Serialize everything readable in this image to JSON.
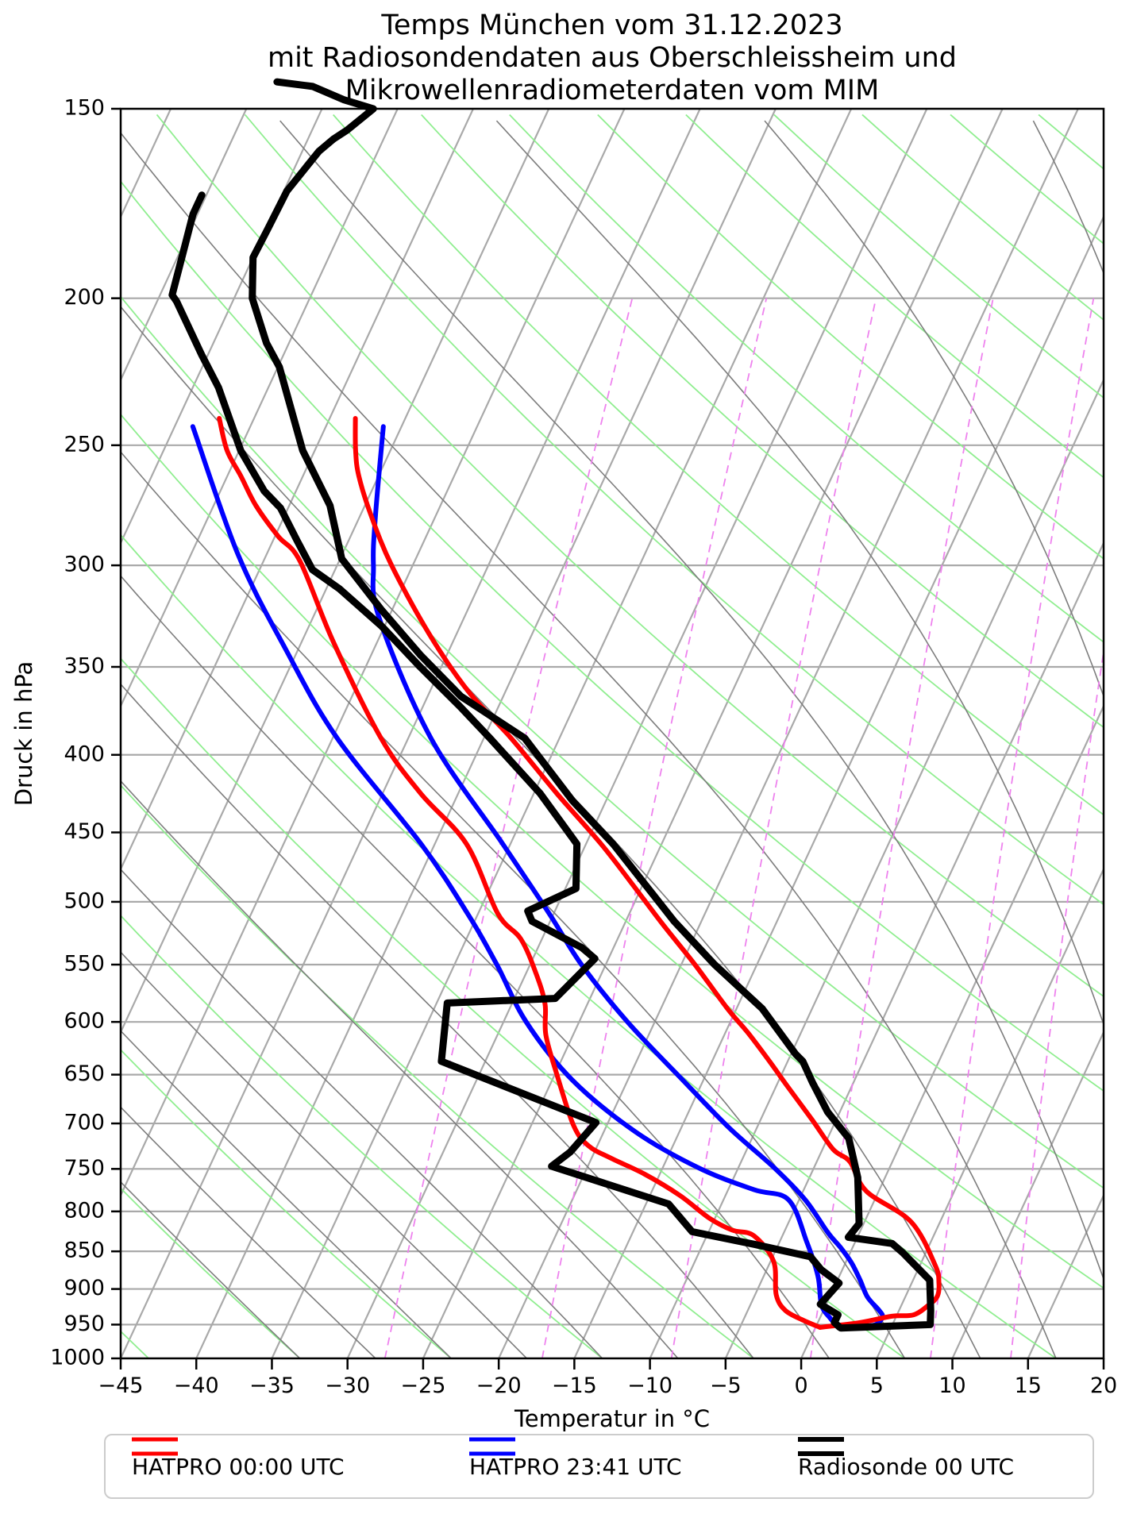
{
  "title": {
    "line1": "Temps München vom 31.12.2023",
    "line2": "mit Radiosondendaten aus Oberschleissheim und",
    "line3": "Mikrowellenradiometerdaten vom MIM"
  },
  "x_axis": {
    "label": "Temperatur in °C",
    "ticks": [
      -45,
      -40,
      -35,
      -30,
      -25,
      -20,
      -15,
      -10,
      -5,
      0,
      5,
      10,
      15,
      20
    ]
  },
  "y_axis": {
    "label": "Druck in hPa",
    "ticks": [
      150,
      200,
      250,
      300,
      350,
      400,
      450,
      500,
      550,
      600,
      650,
      700,
      750,
      800,
      850,
      900,
      950,
      1000
    ],
    "scale": "log"
  },
  "legend": {
    "items": [
      {
        "label": "HATPRO 00:00 UTC",
        "color": "#ff0000"
      },
      {
        "label": "HATPRO 23:41 UTC",
        "color": "#0000ff"
      },
      {
        "label": "Radiosonde 00 UTC",
        "color": "#000000"
      }
    ]
  },
  "style": {
    "isobar_color": "#a9a9a9",
    "isobar_width": 2.2,
    "isotherm_color": "#a9a9a9",
    "isotherm_width": 2.2,
    "dry_adiabat_color": "#90ee90",
    "dry_adiabat_width": 1.8,
    "moist_adiabat_color": "#7d7d7d",
    "moist_adiabat_width": 1.6,
    "mixing_ratio_color": "#ee82ee",
    "mixing_ratio_width": 1.8,
    "frame_color": "#000000",
    "frame_width": 2.5,
    "tick_font_px": 27
  },
  "chart_data": {
    "type": "line",
    "subtype": "skew-t-log-p",
    "title": "Temps München vom 31.12.2023 mit Radiosondendaten aus Oberschleissheim und Mikrowellenradiometerdaten vom MIM",
    "xlabel": "Temperatur in °C",
    "ylabel": "Druck in hPa",
    "x_range_c": [
      -45,
      20
    ],
    "p_range_hpa": [
      150,
      1000
    ],
    "skew_deg_c_per_decade": 46.5,
    "grid_on": true,
    "legend_position": "bottom",
    "background": {
      "isobars_hpa": [
        150,
        200,
        250,
        300,
        350,
        400,
        450,
        500,
        550,
        600,
        650,
        700,
        750,
        800,
        850,
        900,
        950,
        1000
      ],
      "isotherms_c": {
        "min": -85,
        "max": 20,
        "step": 5
      },
      "dry_adiabats_theta_k": {
        "min": 230,
        "max": 440,
        "step": 10
      },
      "moist_adiabats_thetaw_k": {
        "min": 240,
        "max": 320,
        "step": 5
      },
      "mixing_ratio_g_per_kg": [
        0.4,
        1,
        2,
        4,
        7,
        10,
        16
      ],
      "mixing_ratio_top_hpa": 190
    },
    "series": [
      {
        "id": "hatpro2341_dewpoint",
        "name": "HATPRO 23:41 UTC",
        "variable": "dewpoint",
        "color": "#0000ff",
        "width": 6,
        "smooth": true,
        "points_p_t": [
          [
            243,
            -68.8
          ],
          [
            295,
            -61.9
          ],
          [
            341,
            -55.8
          ],
          [
            390,
            -49.7
          ],
          [
            458,
            -40.9
          ],
          [
            509,
            -35.7
          ],
          [
            550,
            -32.2
          ],
          [
            600,
            -28.5
          ],
          [
            655,
            -23.7
          ],
          [
            709,
            -17.9
          ],
          [
            749,
            -12.6
          ],
          [
            774,
            -8.3
          ],
          [
            786,
            -5.7
          ],
          [
            838,
            -3.2
          ],
          [
            883,
            -1.4
          ],
          [
            922,
            -0.3
          ],
          [
            941,
            0.7
          ],
          [
            952,
            1.4
          ]
        ]
      },
      {
        "id": "hatpro2341_temp",
        "name": "HATPRO 23:41 UTC",
        "variable": "temperature",
        "color": "#0000ff",
        "width": 6,
        "smooth": true,
        "points_p_t": [
          [
            243,
            -56.2
          ],
          [
            278,
            -54.0
          ],
          [
            300,
            -52.6
          ],
          [
            325,
            -50.6
          ],
          [
            390,
            -43.5
          ],
          [
            458,
            -35.5
          ],
          [
            509,
            -30.3
          ],
          [
            550,
            -26.6
          ],
          [
            600,
            -21.8
          ],
          [
            655,
            -16.4
          ],
          [
            705,
            -11.8
          ],
          [
            749,
            -7.6
          ],
          [
            786,
            -4.6
          ],
          [
            826,
            -2.1
          ],
          [
            845,
            -0.8
          ],
          [
            865,
            0.4
          ],
          [
            888,
            1.5
          ],
          [
            911,
            2.5
          ],
          [
            930,
            3.7
          ],
          [
            939,
            4.1
          ],
          [
            950,
            3.9
          ],
          [
            953,
            2.9
          ]
        ]
      },
      {
        "id": "hatpro0000_dewpoint",
        "name": "HATPRO 00:00 UTC",
        "variable": "dewpoint",
        "color": "#ff0000",
        "width": 6,
        "smooth": true,
        "points_p_t": [
          [
            240,
            -67.3
          ],
          [
            252,
            -65.8
          ],
          [
            262,
            -64.1
          ],
          [
            274,
            -62.2
          ],
          [
            287,
            -59.8
          ],
          [
            298,
            -57.6
          ],
          [
            337,
            -52.9
          ],
          [
            390,
            -46.8
          ],
          [
            424,
            -42.5
          ],
          [
            458,
            -37.9
          ],
          [
            509,
            -33.7
          ],
          [
            529,
            -31.4
          ],
          [
            558,
            -29.3
          ],
          [
            584,
            -27.8
          ],
          [
            612,
            -26.8
          ],
          [
            651,
            -24.8
          ],
          [
            702,
            -22.2
          ],
          [
            724,
            -20.6
          ],
          [
            738,
            -18.7
          ],
          [
            756,
            -16.0
          ],
          [
            781,
            -13.0
          ],
          [
            808,
            -10.4
          ],
          [
            823,
            -8.5
          ],
          [
            830,
            -6.9
          ],
          [
            863,
            -4.8
          ],
          [
            908,
            -3.6
          ],
          [
            930,
            -2.5
          ],
          [
            944,
            -1.0
          ],
          [
            954,
            0.3
          ]
        ]
      },
      {
        "id": "hatpro0000_temp",
        "name": "HATPRO 00:00 UTC",
        "variable": "temperature",
        "color": "#ff0000",
        "width": 6,
        "smooth": true,
        "points_p_t": [
          [
            240,
            -58.3
          ],
          [
            252,
            -57.3
          ],
          [
            262,
            -56.3
          ],
          [
            278,
            -54.3
          ],
          [
            300,
            -51.4
          ],
          [
            333,
            -46.8
          ],
          [
            363,
            -42.5
          ],
          [
            390,
            -38.2
          ],
          [
            424,
            -33.5
          ],
          [
            458,
            -29.0
          ],
          [
            485,
            -25.9
          ],
          [
            517,
            -22.5
          ],
          [
            550,
            -19.1
          ],
          [
            588,
            -15.6
          ],
          [
            610,
            -13.5
          ],
          [
            637,
            -11.2
          ],
          [
            661,
            -9.3
          ],
          [
            696,
            -6.6
          ],
          [
            728,
            -4.3
          ],
          [
            742,
            -2.8
          ],
          [
            776,
            -0.8
          ],
          [
            813,
            3.1
          ],
          [
            868,
            6.0
          ],
          [
            892,
            6.8
          ],
          [
            910,
            7.1
          ],
          [
            922,
            6.8
          ],
          [
            936,
            6.1
          ],
          [
            938,
            4.7
          ],
          [
            947,
            2.8
          ],
          [
            954,
            0.3
          ]
        ]
      },
      {
        "id": "radiosonde00_dewpoint",
        "name": "Radiosonde 00 UTC",
        "variable": "dewpoint",
        "color": "#000000",
        "width": 9,
        "smooth": false,
        "points_p_t": [
          [
            171,
            -75.3
          ],
          [
            176,
            -75.3
          ],
          [
            184,
            -74.9
          ],
          [
            199,
            -74.2
          ],
          [
            201,
            -73.7
          ],
          [
            218,
            -70.4
          ],
          [
            229,
            -68.3
          ],
          [
            252,
            -64.9
          ],
          [
            268,
            -62.1
          ],
          [
            275,
            -60.5
          ],
          [
            289,
            -58.4
          ],
          [
            302,
            -56.5
          ],
          [
            311,
            -54.1
          ],
          [
            329,
            -50.2
          ],
          [
            350,
            -46.4
          ],
          [
            372,
            -42.5
          ],
          [
            390,
            -39.6
          ],
          [
            424,
            -34.6
          ],
          [
            458,
            -30.6
          ],
          [
            490,
            -29.3
          ],
          [
            507,
            -31.8
          ],
          [
            515,
            -31.2
          ],
          [
            536,
            -27.1
          ],
          [
            545,
            -25.9
          ],
          [
            579,
            -27.3
          ],
          [
            583,
            -34.3
          ],
          [
            637,
            -32.9
          ],
          [
            699,
            -20.8
          ],
          [
            731,
            -21.6
          ],
          [
            747,
            -22.4
          ],
          [
            791,
            -13.5
          ],
          [
            825,
            -11.1
          ],
          [
            841,
            -6.6
          ],
          [
            857,
            -2.5
          ],
          [
            874,
            -1.4
          ],
          [
            892,
            0.2
          ],
          [
            921,
            -0.4
          ],
          [
            936,
            1.1
          ],
          [
            947,
            1.1
          ],
          [
            954,
            1.6
          ]
        ]
      },
      {
        "id": "radiosonde00_temp",
        "name": "Radiosonde 00 UTC",
        "variable": "temperature",
        "color": "#000000",
        "width": 9,
        "smooth": false,
        "points_p_t": [
          [
            144,
            -73.8
          ],
          [
            145,
            -71.3
          ],
          [
            148,
            -68.8
          ],
          [
            150,
            -66.6
          ],
          [
            155,
            -67.7
          ],
          [
            157,
            -68.3
          ],
          [
            160,
            -68.9
          ],
          [
            170,
            -69.8
          ],
          [
            180,
            -69.9
          ],
          [
            188,
            -70.0
          ],
          [
            200,
            -68.8
          ],
          [
            214,
            -66.5
          ],
          [
            222,
            -64.9
          ],
          [
            252,
            -60.8
          ],
          [
            274,
            -57.3
          ],
          [
            297,
            -54.9
          ],
          [
            321,
            -50.7
          ],
          [
            344,
            -46.7
          ],
          [
            366,
            -42.8
          ],
          [
            390,
            -37.3
          ],
          [
            429,
            -32.2
          ],
          [
            458,
            -28.2
          ],
          [
            515,
            -21.8
          ],
          [
            550,
            -17.8
          ],
          [
            588,
            -13.3
          ],
          [
            630,
            -9.7
          ],
          [
            637,
            -9.0
          ],
          [
            658,
            -7.7
          ],
          [
            688,
            -5.8
          ],
          [
            716,
            -3.6
          ],
          [
            760,
            -1.8
          ],
          [
            815,
            -0.3
          ],
          [
            832,
            -0.6
          ],
          [
            840,
            2.5
          ],
          [
            852,
            3.5
          ],
          [
            888,
            6.1
          ],
          [
            930,
            7.1
          ],
          [
            950,
            7.5
          ],
          [
            955,
            1.7
          ]
        ]
      }
    ]
  }
}
